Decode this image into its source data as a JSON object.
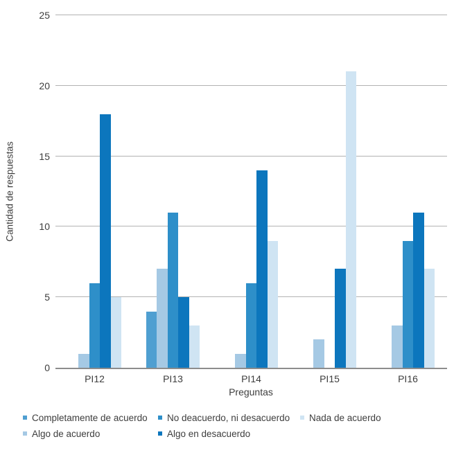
{
  "chart_data": {
    "type": "bar",
    "title": "",
    "xlabel": "Preguntas",
    "ylabel": "Cantidad de respuestas",
    "ylim": [
      0,
      25
    ],
    "yticks": [
      0,
      5,
      10,
      15,
      20,
      25
    ],
    "grid": true,
    "legend_position": "bottom",
    "legend_columns": 3,
    "categories": [
      "PI12",
      "PI13",
      "PI14",
      "PI15",
      "PI16"
    ],
    "series": [
      {
        "name": "Completamente de acuerdo",
        "color": "#4F9FD1",
        "values": [
          0,
          4,
          0,
          0,
          0
        ]
      },
      {
        "name": "Algo de acuerdo",
        "color": "#A5C9E4",
        "values": [
          1,
          7,
          1,
          2,
          3
        ]
      },
      {
        "name": "No deacuerdo, ni desacuerdo",
        "color": "#2E8FC9",
        "values": [
          6,
          11,
          6,
          0,
          9
        ]
      },
      {
        "name": "Algo en desacuerdo",
        "color": "#0C76BD",
        "values": [
          18,
          5,
          14,
          7,
          11
        ]
      },
      {
        "name": "Nada de acuerdo",
        "color": "#CFE4F3",
        "values": [
          5,
          3,
          9,
          21,
          7
        ]
      }
    ]
  }
}
